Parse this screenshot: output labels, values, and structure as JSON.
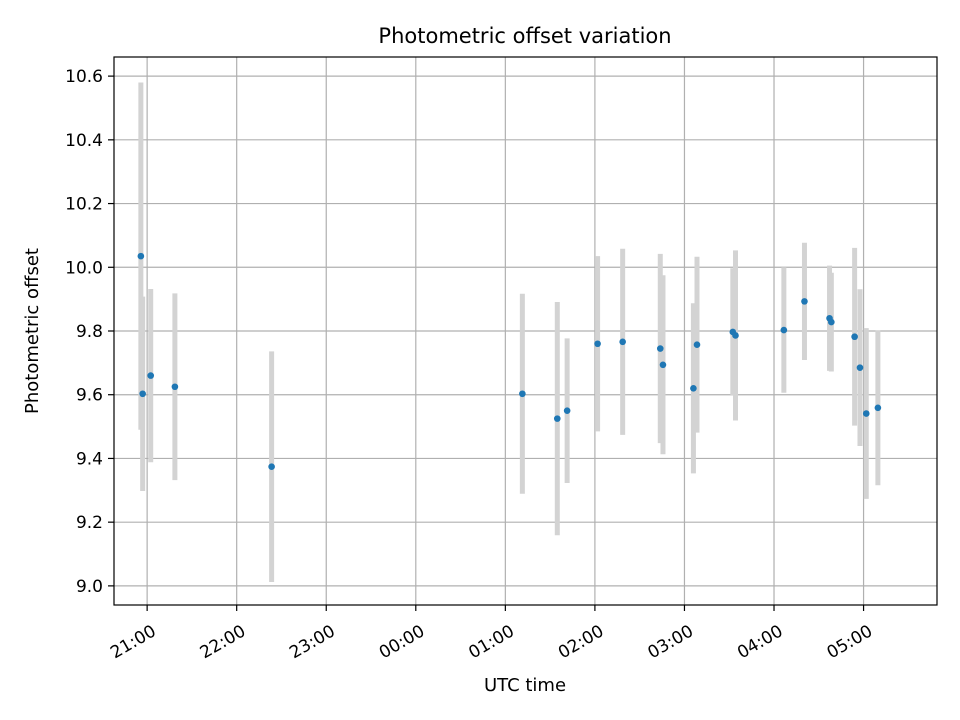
{
  "chart_data": {
    "type": "scatter",
    "title": "Photometric offset variation",
    "xlabel": "UTC time",
    "ylabel": "Photometric offset",
    "grid": true,
    "x_unit": "hours since 20:00 UTC",
    "xlim": [
      0.63,
      9.82
    ],
    "ylim": [
      8.94,
      10.66
    ],
    "x_ticks": [
      {
        "value": 1,
        "label": "21:00"
      },
      {
        "value": 2,
        "label": "22:00"
      },
      {
        "value": 3,
        "label": "23:00"
      },
      {
        "value": 4,
        "label": "00:00"
      },
      {
        "value": 5,
        "label": "01:00"
      },
      {
        "value": 6,
        "label": "02:00"
      },
      {
        "value": 7,
        "label": "03:00"
      },
      {
        "value": 8,
        "label": "04:00"
      },
      {
        "value": 9,
        "label": "05:00"
      }
    ],
    "y_ticks": [
      {
        "value": 9.0,
        "label": "9.0"
      },
      {
        "value": 9.2,
        "label": "9.2"
      },
      {
        "value": 9.4,
        "label": "9.4"
      },
      {
        "value": 9.6,
        "label": "9.6"
      },
      {
        "value": 9.8,
        "label": "9.8"
      },
      {
        "value": 10.0,
        "label": "10.0"
      },
      {
        "value": 10.2,
        "label": "10.2"
      },
      {
        "value": 10.4,
        "label": "10.4"
      },
      {
        "value": 10.6,
        "label": "10.6"
      }
    ],
    "marker_color": "#1f77b4",
    "errorbar_color": "#d3d3d3",
    "points": [
      {
        "x": 0.93,
        "y": 10.035,
        "err": 0.545
      },
      {
        "x": 0.95,
        "y": 9.603,
        "err": 0.305
      },
      {
        "x": 1.04,
        "y": 9.66,
        "err": 0.272
      },
      {
        "x": 1.31,
        "y": 9.625,
        "err": 0.293
      },
      {
        "x": 2.39,
        "y": 9.374,
        "err": 0.362
      },
      {
        "x": 5.19,
        "y": 9.603,
        "err": 0.314
      },
      {
        "x": 5.58,
        "y": 9.525,
        "err": 0.366
      },
      {
        "x": 5.69,
        "y": 9.55,
        "err": 0.227
      },
      {
        "x": 6.03,
        "y": 9.76,
        "err": 0.275
      },
      {
        "x": 6.31,
        "y": 9.766,
        "err": 0.292
      },
      {
        "x": 6.73,
        "y": 9.745,
        "err": 0.297
      },
      {
        "x": 6.76,
        "y": 9.694,
        "err": 0.281
      },
      {
        "x": 7.1,
        "y": 9.62,
        "err": 0.267
      },
      {
        "x": 7.14,
        "y": 9.757,
        "err": 0.276
      },
      {
        "x": 7.54,
        "y": 9.797,
        "err": 0.2
      },
      {
        "x": 7.57,
        "y": 9.786,
        "err": 0.267
      },
      {
        "x": 8.11,
        "y": 9.803,
        "err": 0.197
      },
      {
        "x": 8.34,
        "y": 9.893,
        "err": 0.184
      },
      {
        "x": 8.62,
        "y": 9.84,
        "err": 0.165
      },
      {
        "x": 8.64,
        "y": 9.828,
        "err": 0.155
      },
      {
        "x": 8.9,
        "y": 9.782,
        "err": 0.279
      },
      {
        "x": 8.96,
        "y": 9.685,
        "err": 0.246
      },
      {
        "x": 9.03,
        "y": 9.541,
        "err": 0.268
      },
      {
        "x": 9.16,
        "y": 9.559,
        "err": 0.243
      }
    ]
  }
}
